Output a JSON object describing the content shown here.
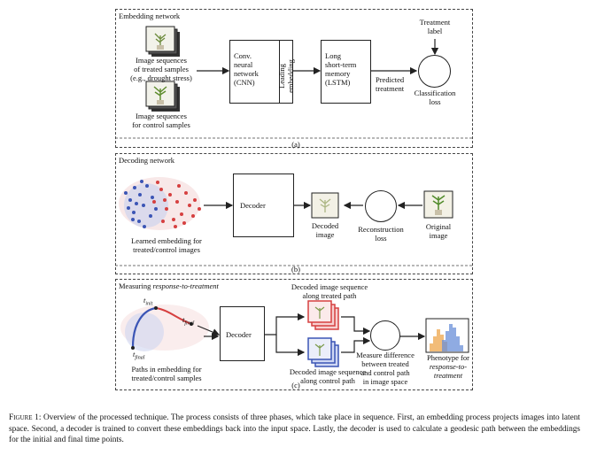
{
  "panel_a": {
    "title": "Embedding network",
    "treated_label": [
      "Image sequences",
      "of treated samples",
      "(e.g., drought stress)"
    ],
    "control_label": [
      "Image sequences",
      "for control samples"
    ],
    "cnn": [
      "Conv.",
      "neural",
      "network",
      "(CNN)"
    ],
    "leading": [
      "Leading",
      "embedding"
    ],
    "lstm": [
      "Long",
      "short-term",
      "memory",
      "(LSTM)"
    ],
    "predicted": [
      "Predicted",
      "treatment"
    ],
    "treatment_label": [
      "Treatment",
      "label"
    ],
    "classification": [
      "Classification",
      "loss"
    ],
    "tag": "(a)"
  },
  "panel_b": {
    "title": "Decoding network",
    "learned": [
      "Learned embedding for",
      "treated/control images"
    ],
    "decoder": "Decoder",
    "decoded": [
      "Decoded",
      "image"
    ],
    "reconstruction": [
      "Reconstruction",
      "loss"
    ],
    "original": [
      "Original",
      "image"
    ],
    "tag": "(b)"
  },
  "panel_c": {
    "title_prefix": "Measuring ",
    "title_em": "response-to-treatment",
    "decoded_treated": [
      "Decoded image sequence",
      "along treated path"
    ],
    "decoder": "Decoder",
    "decoded_control": [
      "Decoded image sequence",
      "along control path"
    ],
    "measure": [
      "Measure difference",
      "between treated",
      "and control path",
      "in image space"
    ],
    "phenotype": [
      "Phenotype for",
      "response-to-",
      "treatment"
    ],
    "paths": [
      "Paths in embedding for",
      "treated/control samples"
    ],
    "t_init": "init",
    "t_final": "final",
    "tag": "(c)"
  },
  "caption": {
    "label": "Figure 1:",
    "text": " Overview of the processed technique. The process consists of three phases, which take place in sequence. First, an embedding process projects images into latent space. Second, a decoder is trained to convert these embeddings back into the input space. Lastly, the decoder is used to calculate a geodesic path between the embeddings for the initial and final time points."
  },
  "colors": {
    "treated": "#d64040",
    "control": "#3b55b5",
    "line": "#222222"
  }
}
